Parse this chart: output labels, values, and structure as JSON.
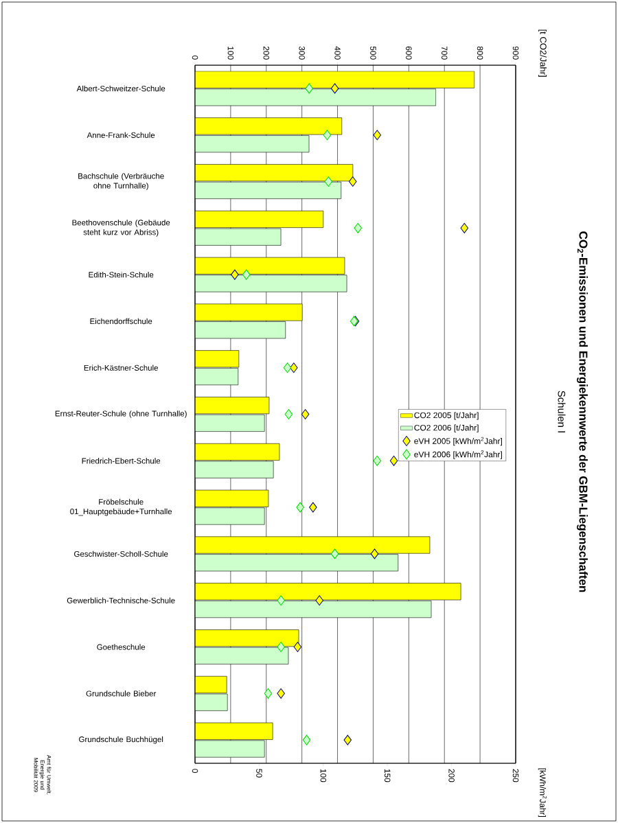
{
  "chart_data": {
    "type": "bar",
    "orientation": "horizontal",
    "title": "CO$_{2}$-Emissionen und Energiekennwerte der GBM-Liegenschaften",
    "subtitle": "Schulen I",
    "x2label": "[t CO2/Jahr]",
    "categories": [
      "Albert-Schweitzer-Schule",
      "Anne-Frank-Schule",
      "Bachschule (Verbräuche ohne Turnhalle)",
      "Beethovenschule (Gebäude steht kurz vor Abriss)",
      "Edith-Stein-Schule",
      "Eichendorffschule",
      "Erich-Kästner-Schule",
      "Ernst-Reuter-Schule (ohne Turnhalle)",
      "Friedrich-Ebert-Schule",
      "Fröbelschule 01_Hauptgebäude+Turnhalle",
      "Geschwister-Scholl-Schule",
      "Gewerblich-Technische-Schule",
      "Goetheschule",
      "Grundschule Bieber",
      "Grundschule Buchhügel"
    ],
    "series": [
      {
        "name": "CO2 2005 [t/Jahr]",
        "color": "#ffff00",
        "axis": "x2",
        "values": [
          784,
          412,
          443,
          360,
          420,
          301,
          123,
          208,
          237,
          206,
          659,
          746,
          291,
          89,
          218
        ]
      },
      {
        "name": "CO2 2006 [t/Jahr]",
        "color": "#ccffcc",
        "axis": "x2",
        "values": [
          676,
          320,
          410,
          241,
          426,
          254,
          121,
          195,
          220,
          195,
          570,
          663,
          262,
          91,
          195
        ]
      },
      {
        "name": "eVH 2005 [kWh/m$^{2}$Jahr]",
        "type": "scatter",
        "color": "#ffff00",
        "values": [
          109,
          142,
          123,
          210,
          31,
          125,
          77,
          86,
          155,
          92,
          140,
          97,
          80,
          67,
          119
        ]
      },
      {
        "name": "eVH 2006 [kWh/m$^{2}$Jahr]",
        "type": "scatter",
        "color": "#ccffcc",
        "values": [
          89,
          103,
          104,
          127,
          40,
          124,
          72,
          73,
          142,
          82,
          109,
          67,
          67,
          57,
          87
        ]
      }
    ],
    "xlim": [
      0,
      250
    ],
    "xticks": [
      0,
      50,
      100,
      150,
      200,
      250
    ],
    "x2lim": [
      0,
      900
    ],
    "x2ticks": [
      0,
      100,
      200,
      300,
      400,
      500,
      600,
      700,
      800,
      900
    ],
    "grid": "x",
    "legend": "right",
    "marker": "diamond",
    "annotations": [
      "Amt für Umwelt, Energie und Mobilität 2009",
      "[kWh/m$^{2}$Jahr]"
    ]
  }
}
